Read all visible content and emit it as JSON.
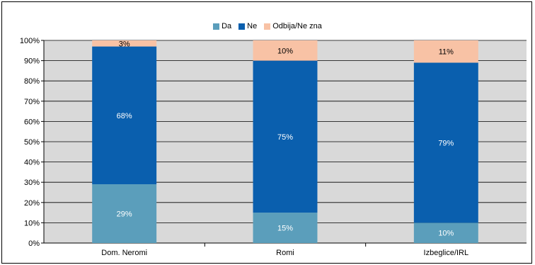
{
  "chart_data": {
    "type": "bar",
    "stacked": true,
    "percent": true,
    "categories": [
      "Dom. Neromi",
      "Romi",
      "Izbeglice/IRL"
    ],
    "series": [
      {
        "name": "Da",
        "color": "#5B9EBB",
        "values": [
          29,
          15,
          10
        ]
      },
      {
        "name": "Ne",
        "color": "#0A5FAE",
        "values": [
          68,
          75,
          79
        ]
      },
      {
        "name": "Odbija/Ne zna",
        "color": "#F8C2A5",
        "values": [
          3,
          10,
          11
        ]
      }
    ],
    "data_labels": [
      [
        "29%",
        "68%",
        "3%"
      ],
      [
        "15%",
        "75%",
        "10%"
      ],
      [
        "10%",
        "79%",
        "11%"
      ]
    ],
    "y_ticks": [
      "0%",
      "10%",
      "20%",
      "30%",
      "40%",
      "50%",
      "60%",
      "70%",
      "80%",
      "90%",
      "100%"
    ],
    "ylim": [
      0,
      100
    ],
    "plot_background": "#D9D9D9",
    "grid": true,
    "legend_position": "top-center"
  }
}
